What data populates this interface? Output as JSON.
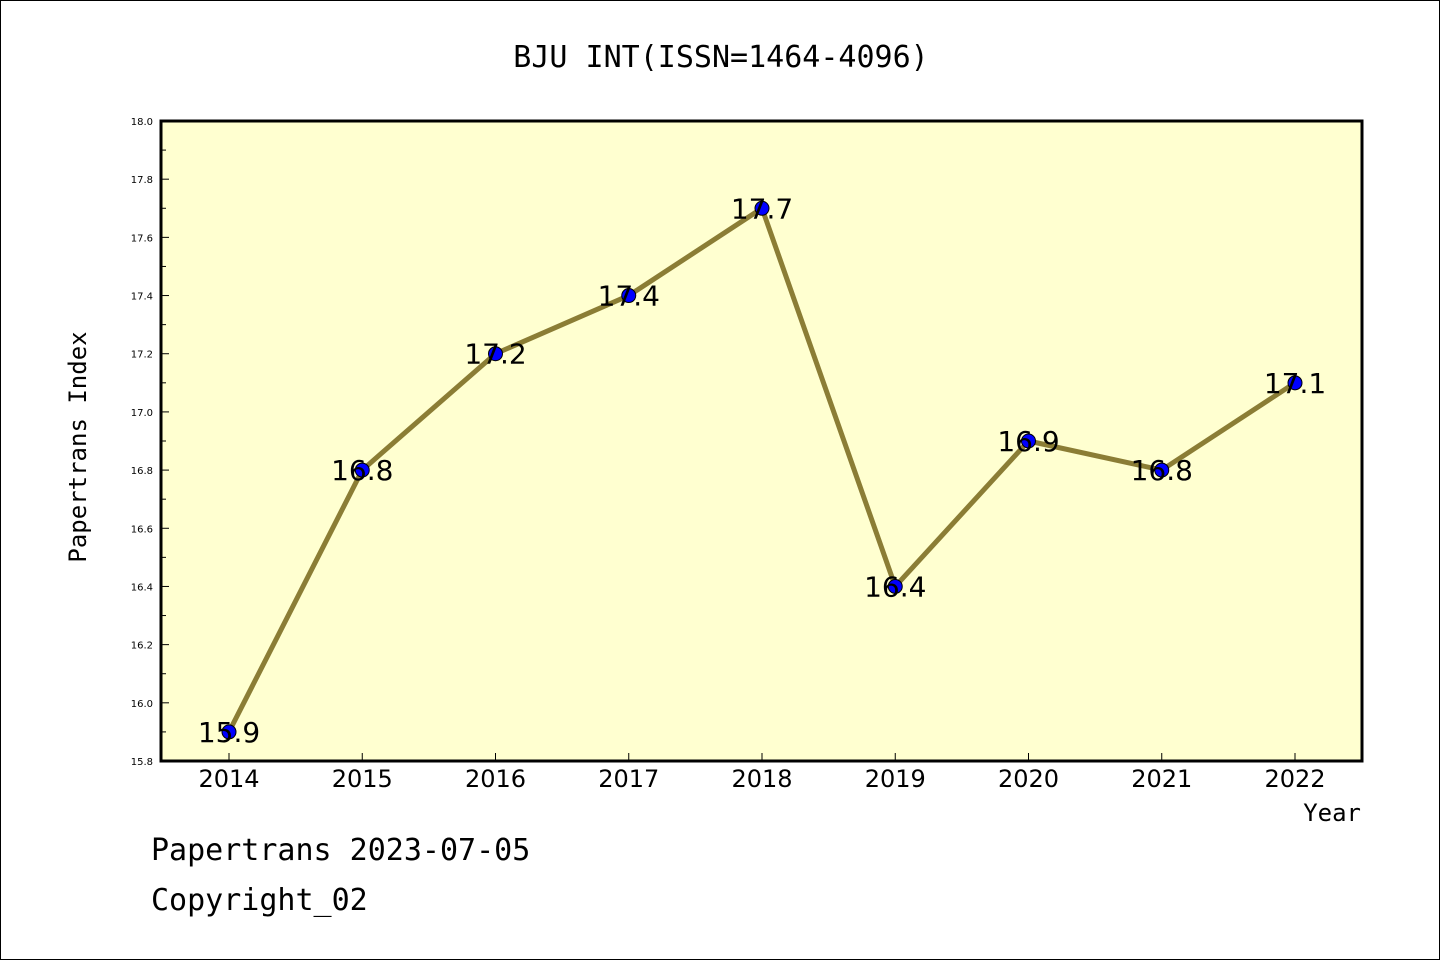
{
  "chart_data": {
    "type": "line",
    "title": "BJU INT(ISSN=1464-4096)",
    "xlabel": "Year",
    "ylabel": "Papertrans Index",
    "categories": [
      "2014",
      "2015",
      "2016",
      "2017",
      "2018",
      "2019",
      "2020",
      "2021",
      "2022"
    ],
    "values": [
      15.9,
      16.8,
      17.2,
      17.4,
      17.7,
      16.4,
      16.9,
      16.8,
      17.1
    ],
    "data_labels": [
      "15.9",
      "16.8",
      "17.2",
      "17.4",
      "17.7",
      "16.4",
      "16.9",
      "16.8",
      "17.1"
    ],
    "ylim": [
      15.8,
      18.0
    ],
    "yticks": [
      "15.8",
      "16.0",
      "16.2",
      "16.4",
      "16.6",
      "16.8",
      "17.0",
      "17.2",
      "17.4",
      "17.6",
      "17.8",
      "18.0"
    ],
    "grid": false,
    "colors": {
      "plot_background": "#ffffd0",
      "line": "#8b7d35",
      "marker": "#0000ff"
    }
  },
  "footer": {
    "source": "Papertrans 2023-07-05",
    "copyright": "Copyright_02"
  }
}
